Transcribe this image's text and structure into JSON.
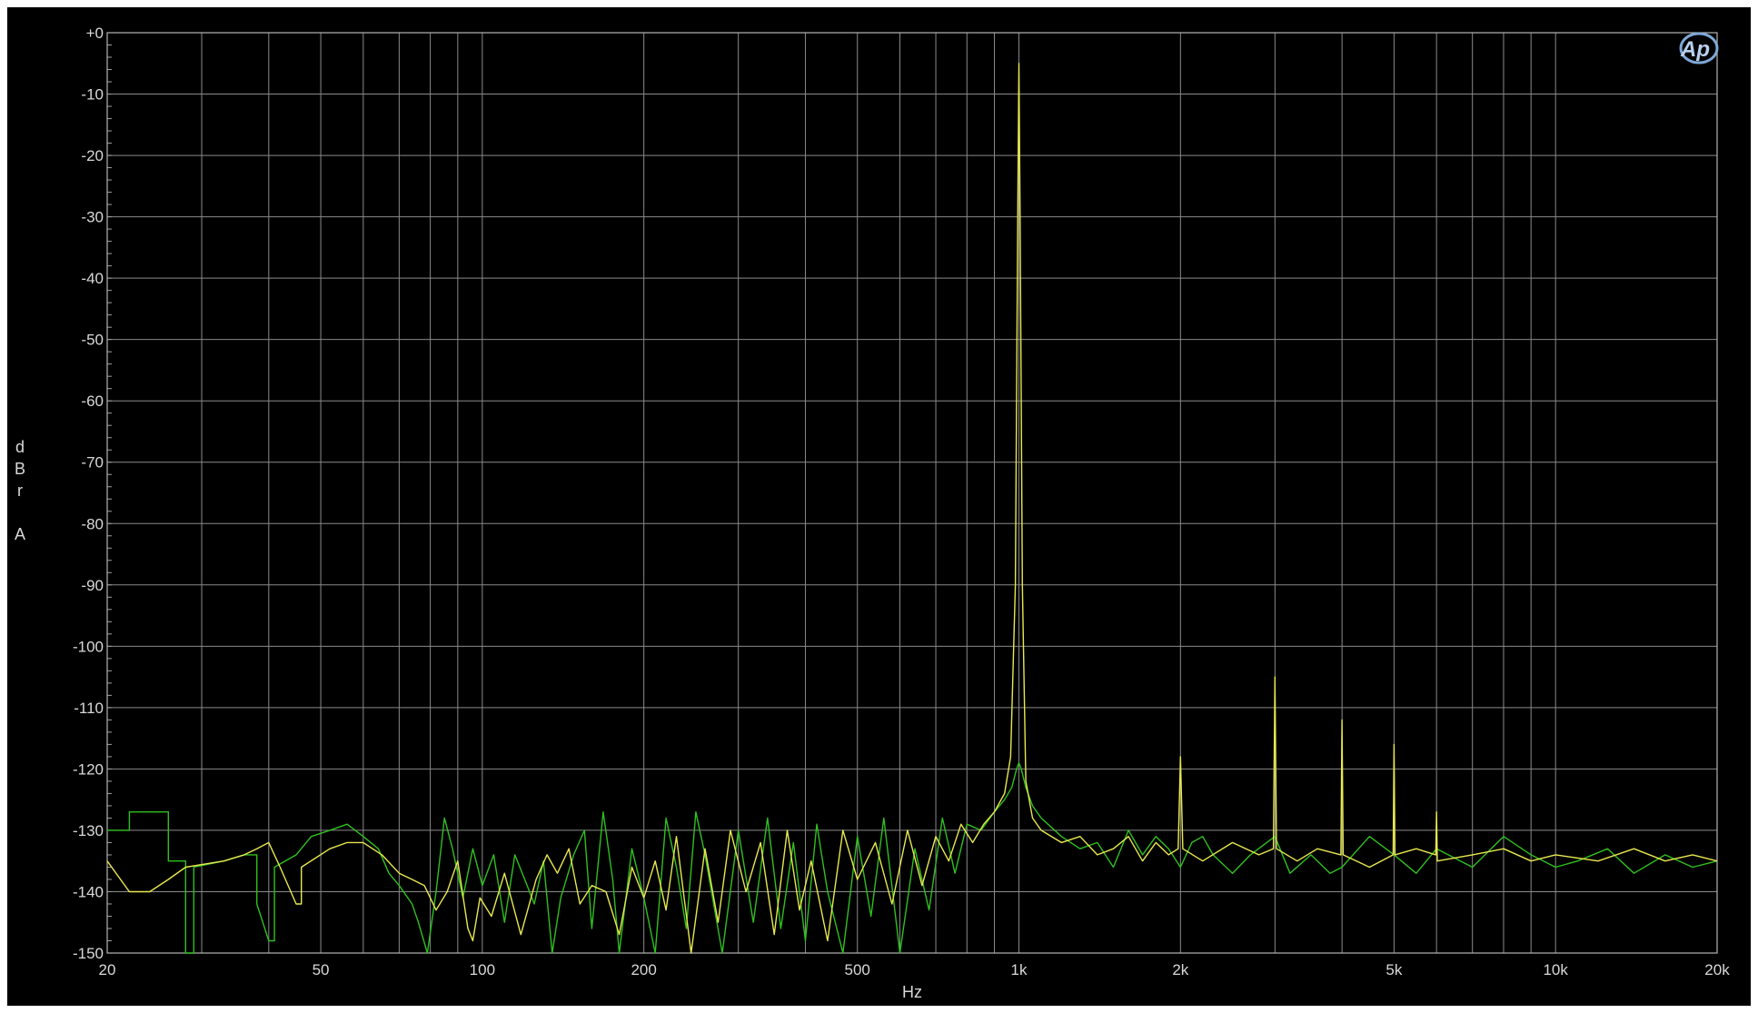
{
  "chart_data": {
    "type": "line",
    "title": "",
    "xlabel": "Hz",
    "ylabel": "dBr A",
    "ylabel_chars": [
      "d",
      "B",
      "r",
      "",
      "A"
    ],
    "x_scale": "log",
    "xlim": [
      20,
      20000
    ],
    "ylim": [
      -150,
      0
    ],
    "grid": true,
    "x_ticks": [
      {
        "value": 20,
        "label": "20"
      },
      {
        "value": 50,
        "label": "50"
      },
      {
        "value": 100,
        "label": "100"
      },
      {
        "value": 200,
        "label": "200"
      },
      {
        "value": 500,
        "label": "500"
      },
      {
        "value": 1000,
        "label": "1k"
      },
      {
        "value": 2000,
        "label": "2k"
      },
      {
        "value": 5000,
        "label": "5k"
      },
      {
        "value": 10000,
        "label": "10k"
      },
      {
        "value": 20000,
        "label": "20k"
      }
    ],
    "y_ticks": [
      {
        "value": 0,
        "label": "+0"
      },
      {
        "value": -10,
        "label": "-10"
      },
      {
        "value": -20,
        "label": "-20"
      },
      {
        "value": -30,
        "label": "-30"
      },
      {
        "value": -40,
        "label": "-40"
      },
      {
        "value": -50,
        "label": "-50"
      },
      {
        "value": -60,
        "label": "-60"
      },
      {
        "value": -70,
        "label": "-70"
      },
      {
        "value": -80,
        "label": "-80"
      },
      {
        "value": -90,
        "label": "-90"
      },
      {
        "value": -100,
        "label": "-100"
      },
      {
        "value": -110,
        "label": "-110"
      },
      {
        "value": -120,
        "label": "-120"
      },
      {
        "value": -130,
        "label": "-130"
      },
      {
        "value": -140,
        "label": "-140"
      },
      {
        "value": -150,
        "label": "-150"
      }
    ],
    "logo_text": "Ap",
    "series": [
      {
        "color": "#2fbf1f",
        "points": [
          [
            20,
            -130
          ],
          [
            22,
            -130
          ],
          [
            22,
            -127
          ],
          [
            26,
            -127
          ],
          [
            26,
            -135
          ],
          [
            28,
            -135
          ],
          [
            28,
            -150
          ],
          [
            29,
            -150
          ],
          [
            29,
            -136
          ],
          [
            33,
            -135
          ],
          [
            36,
            -134
          ],
          [
            38,
            -134
          ],
          [
            38,
            -142
          ],
          [
            40,
            -148
          ],
          [
            41,
            -148
          ],
          [
            41,
            -136
          ],
          [
            45,
            -134
          ],
          [
            48,
            -131
          ],
          [
            52,
            -130
          ],
          [
            56,
            -129
          ],
          [
            60,
            -131
          ],
          [
            64,
            -133
          ],
          [
            67,
            -137
          ],
          [
            70,
            -139
          ],
          [
            74,
            -142
          ],
          [
            76,
            -145
          ],
          [
            79,
            -150
          ],
          [
            82,
            -140
          ],
          [
            85,
            -128
          ],
          [
            88,
            -133
          ],
          [
            92,
            -141
          ],
          [
            96,
            -133
          ],
          [
            100,
            -139
          ],
          [
            105,
            -134
          ],
          [
            110,
            -145
          ],
          [
            115,
            -134
          ],
          [
            120,
            -138
          ],
          [
            125,
            -142
          ],
          [
            130,
            -135
          ],
          [
            135,
            -150
          ],
          [
            140,
            -141
          ],
          [
            148,
            -134
          ],
          [
            155,
            -130
          ],
          [
            160,
            -146
          ],
          [
            168,
            -127
          ],
          [
            175,
            -138
          ],
          [
            180,
            -150
          ],
          [
            190,
            -133
          ],
          [
            200,
            -141
          ],
          [
            210,
            -150
          ],
          [
            220,
            -128
          ],
          [
            230,
            -136
          ],
          [
            240,
            -146
          ],
          [
            250,
            -127
          ],
          [
            260,
            -134
          ],
          [
            280,
            -150
          ],
          [
            300,
            -130
          ],
          [
            320,
            -145
          ],
          [
            340,
            -128
          ],
          [
            360,
            -146
          ],
          [
            380,
            -132
          ],
          [
            400,
            -148
          ],
          [
            420,
            -129
          ],
          [
            440,
            -140
          ],
          [
            470,
            -150
          ],
          [
            500,
            -131
          ],
          [
            530,
            -144
          ],
          [
            560,
            -128
          ],
          [
            600,
            -150
          ],
          [
            640,
            -133
          ],
          [
            680,
            -143
          ],
          [
            720,
            -128
          ],
          [
            760,
            -137
          ],
          [
            800,
            -129
          ],
          [
            850,
            -130
          ],
          [
            900,
            -127
          ],
          [
            940,
            -125
          ],
          [
            970,
            -123
          ],
          [
            990,
            -120
          ],
          [
            1000,
            -119
          ],
          [
            1010,
            -120
          ],
          [
            1030,
            -123
          ],
          [
            1060,
            -126
          ],
          [
            1100,
            -128
          ],
          [
            1200,
            -131
          ],
          [
            1300,
            -133
          ],
          [
            1400,
            -132
          ],
          [
            1500,
            -136
          ],
          [
            1600,
            -130
          ],
          [
            1700,
            -134
          ],
          [
            1800,
            -131
          ],
          [
            1900,
            -133
          ],
          [
            2000,
            -136
          ],
          [
            2100,
            -132
          ],
          [
            2200,
            -131
          ],
          [
            2300,
            -134
          ],
          [
            2500,
            -137
          ],
          [
            2700,
            -134
          ],
          [
            3000,
            -131
          ],
          [
            3200,
            -137
          ],
          [
            3500,
            -134
          ],
          [
            3800,
            -137
          ],
          [
            4000,
            -136
          ],
          [
            4500,
            -131
          ],
          [
            5000,
            -134
          ],
          [
            5500,
            -137
          ],
          [
            6000,
            -133
          ],
          [
            7000,
            -136
          ],
          [
            8000,
            -131
          ],
          [
            9000,
            -134
          ],
          [
            10000,
            -136
          ],
          [
            11000,
            -135
          ],
          [
            12500,
            -133
          ],
          [
            14000,
            -137
          ],
          [
            16000,
            -134
          ],
          [
            18000,
            -136
          ],
          [
            20000,
            -135
          ]
        ]
      },
      {
        "color": "#e8e850",
        "points": [
          [
            20,
            -135
          ],
          [
            22,
            -140
          ],
          [
            24,
            -140
          ],
          [
            26,
            -138
          ],
          [
            28,
            -136
          ],
          [
            33,
            -135
          ],
          [
            36,
            -134
          ],
          [
            38,
            -133
          ],
          [
            40,
            -132
          ],
          [
            42,
            -136
          ],
          [
            45,
            -142
          ],
          [
            46,
            -142
          ],
          [
            46,
            -136
          ],
          [
            52,
            -133
          ],
          [
            56,
            -132
          ],
          [
            60,
            -132
          ],
          [
            65,
            -134
          ],
          [
            70,
            -137
          ],
          [
            74,
            -138
          ],
          [
            78,
            -139
          ],
          [
            82,
            -143
          ],
          [
            86,
            -140
          ],
          [
            90,
            -135
          ],
          [
            94,
            -146
          ],
          [
            96,
            -148
          ],
          [
            99,
            -141
          ],
          [
            104,
            -144
          ],
          [
            110,
            -137
          ],
          [
            118,
            -147
          ],
          [
            126,
            -138
          ],
          [
            132,
            -134
          ],
          [
            138,
            -137
          ],
          [
            145,
            -133
          ],
          [
            152,
            -142
          ],
          [
            160,
            -139
          ],
          [
            170,
            -140
          ],
          [
            180,
            -147
          ],
          [
            190,
            -136
          ],
          [
            200,
            -141
          ],
          [
            210,
            -135
          ],
          [
            220,
            -143
          ],
          [
            230,
            -131
          ],
          [
            245,
            -150
          ],
          [
            260,
            -133
          ],
          [
            275,
            -145
          ],
          [
            290,
            -130
          ],
          [
            310,
            -140
          ],
          [
            330,
            -132
          ],
          [
            350,
            -147
          ],
          [
            370,
            -130
          ],
          [
            390,
            -143
          ],
          [
            410,
            -135
          ],
          [
            440,
            -148
          ],
          [
            470,
            -130
          ],
          [
            500,
            -138
          ],
          [
            540,
            -132
          ],
          [
            580,
            -142
          ],
          [
            620,
            -130
          ],
          [
            660,
            -139
          ],
          [
            700,
            -131
          ],
          [
            740,
            -135
          ],
          [
            780,
            -129
          ],
          [
            820,
            -132
          ],
          [
            860,
            -129
          ],
          [
            900,
            -127
          ],
          [
            940,
            -124
          ],
          [
            965,
            -118
          ],
          [
            985,
            -90
          ],
          [
            995,
            -30
          ],
          [
            1000,
            -5
          ],
          [
            1005,
            -30
          ],
          [
            1015,
            -90
          ],
          [
            1030,
            -122
          ],
          [
            1060,
            -128
          ],
          [
            1100,
            -130
          ],
          [
            1200,
            -132
          ],
          [
            1300,
            -131
          ],
          [
            1400,
            -134
          ],
          [
            1500,
            -133
          ],
          [
            1600,
            -131
          ],
          [
            1700,
            -135
          ],
          [
            1800,
            -132
          ],
          [
            1900,
            -134
          ],
          [
            1980,
            -133
          ],
          [
            2000,
            -118
          ],
          [
            2020,
            -133
          ],
          [
            2200,
            -135
          ],
          [
            2500,
            -132
          ],
          [
            2800,
            -134
          ],
          [
            2980,
            -133
          ],
          [
            3000,
            -105
          ],
          [
            3020,
            -133
          ],
          [
            3300,
            -135
          ],
          [
            3600,
            -133
          ],
          [
            3980,
            -134
          ],
          [
            4000,
            -112
          ],
          [
            4020,
            -134
          ],
          [
            4500,
            -136
          ],
          [
            4980,
            -134
          ],
          [
            5000,
            -116
          ],
          [
            5020,
            -134
          ],
          [
            5500,
            -133
          ],
          [
            5980,
            -134
          ],
          [
            6000,
            -127
          ],
          [
            6020,
            -135
          ],
          [
            7000,
            -134
          ],
          [
            8000,
            -133
          ],
          [
            9000,
            -135
          ],
          [
            10000,
            -134
          ],
          [
            12000,
            -135
          ],
          [
            14000,
            -133
          ],
          [
            16000,
            -135
          ],
          [
            18000,
            -134
          ],
          [
            20000,
            -135
          ]
        ]
      }
    ]
  }
}
